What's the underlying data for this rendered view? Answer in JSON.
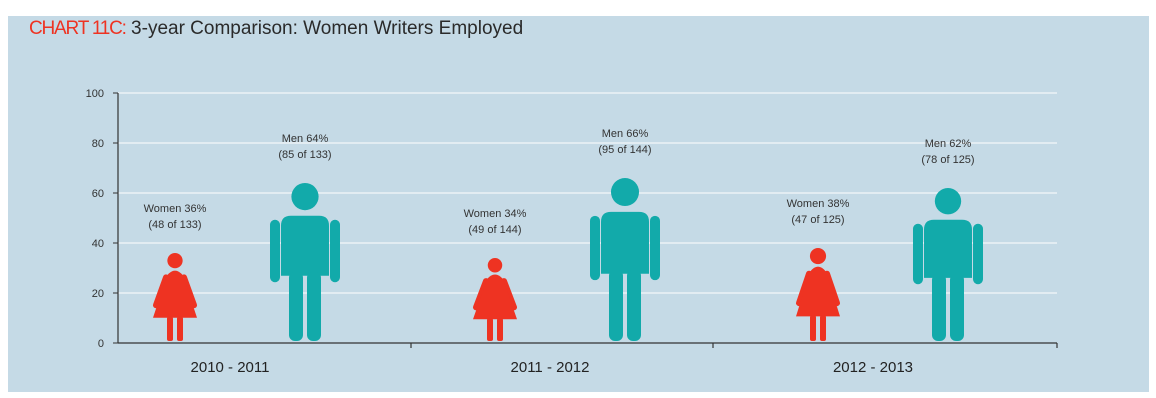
{
  "title_prefix": "CHART 11C:",
  "title_text": "3-year Comparison: Women Writers Employed",
  "colors": {
    "women": "#ee3322",
    "men": "#12aaaa",
    "background": "#c5dae6",
    "gridline": "#ffffff"
  },
  "chart_data": {
    "type": "bar",
    "title": "CHART 11C: 3-year Comparison: Women Writers Employed",
    "xlabel": "",
    "ylabel": "",
    "ylim": [
      0,
      100
    ],
    "yticks": [
      0,
      20,
      40,
      60,
      80,
      100
    ],
    "ytick_labels": [
      "0",
      "20",
      "40",
      "60",
      "80",
      "100"
    ],
    "grid": true,
    "categories": [
      "2010 - 2011",
      "2011 - 2012",
      "2012 - 2013"
    ],
    "series": [
      {
        "name": "Women",
        "values": [
          36,
          34,
          38
        ],
        "labels": [
          [
            "Women 36%",
            "(48 of 133)"
          ],
          [
            "Women 34%",
            "(49 of 144)"
          ],
          [
            "Women 38%",
            "(47 of 125)"
          ]
        ]
      },
      {
        "name": "Men",
        "values": [
          64,
          66,
          62
        ],
        "labels": [
          [
            "Men 64%",
            "(85 of 133)"
          ],
          [
            "Men 66%",
            "(95 of 144)"
          ],
          [
            "Men 62%",
            "(78 of 125)"
          ]
        ]
      }
    ]
  }
}
